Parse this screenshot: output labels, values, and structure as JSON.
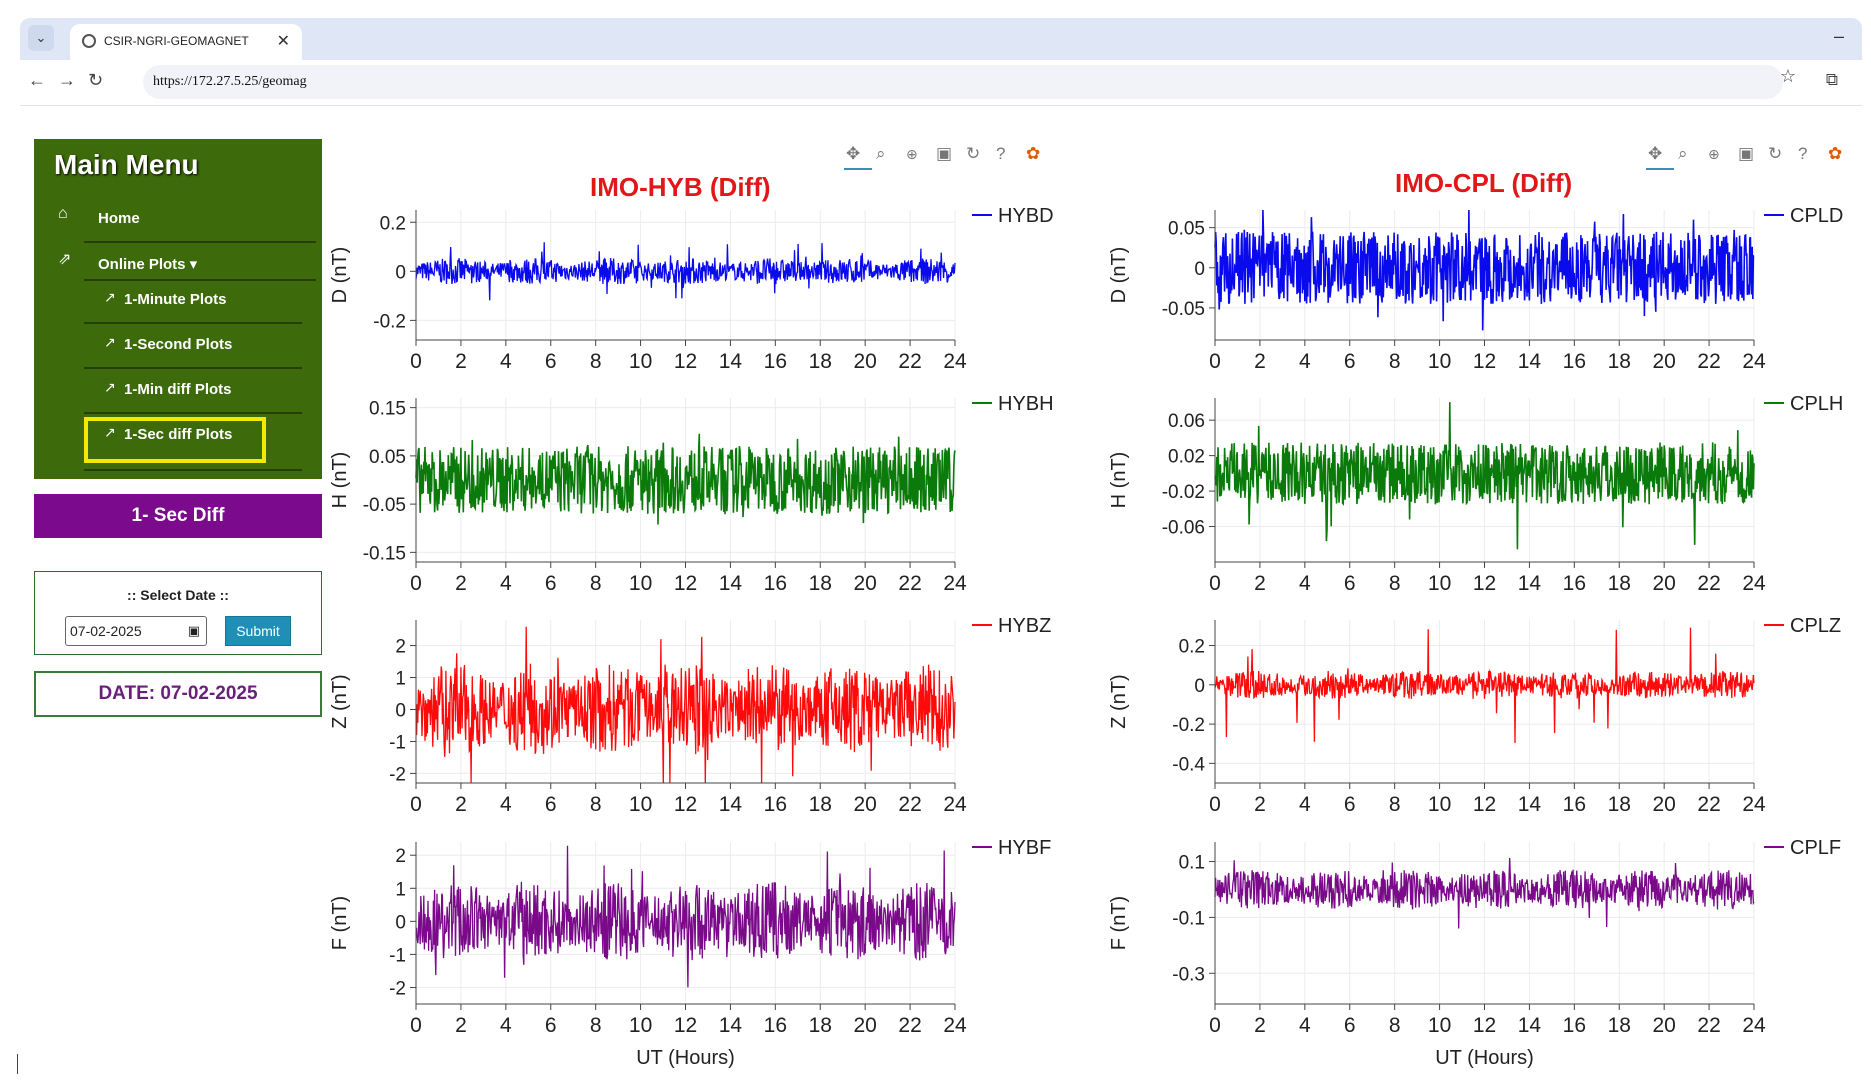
{
  "browser": {
    "tab_title": "CSIR-NGRI-GEOMAGNET",
    "url": "https://172.27.5.25/geomag"
  },
  "sidebar": {
    "title": "Main Menu",
    "home": "Home",
    "online_plots": "Online Plots ▾",
    "items": [
      "1-Minute Plots",
      "1-Second Plots",
      "1-Min diff Plots",
      "1-Sec diff Plots"
    ]
  },
  "mode_label": "1- Sec Diff",
  "date_form": {
    "label": ":: Select Date ::",
    "value": "07-02-2025",
    "submit": "Submit"
  },
  "date_banner": "DATE: 07-02-2025",
  "toolbar_icons": [
    "pan-icon",
    "box-zoom-icon",
    "zoom-icon",
    "save-icon",
    "reset-icon",
    "help-icon",
    "bokeh-logo-icon"
  ],
  "chart_data": [
    {
      "type": "line",
      "title": "IMO-HYB (Diff)",
      "xlabel": "UT (Hours)",
      "x_ticks": [
        0,
        2,
        4,
        6,
        8,
        10,
        12,
        14,
        16,
        18,
        20,
        22,
        24
      ],
      "xlim": [
        0,
        24
      ],
      "panels": [
        {
          "series": "HYBD",
          "ylabel": "D (nT)",
          "color": "#0a0aee",
          "ylim": [
            -0.28,
            0.25
          ],
          "yticks": [
            0.2,
            0,
            -0.2
          ],
          "ytick_labels": [
            "0.2",
            "0",
            "-0.2"
          ],
          "amplitude": 0.045,
          "spike": 0.12,
          "band": 0
        },
        {
          "series": "HYBH",
          "ylabel": "H (nT)",
          "color": "#0a7a0a",
          "ylim": [
            -0.17,
            0.17
          ],
          "yticks": [
            0.15,
            0.05,
            -0.05,
            -0.15
          ],
          "ytick_labels": [
            "0.15",
            "0.05",
            "-0.05",
            "-0.15"
          ],
          "amplitude": 0.07,
          "spike": 0.1,
          "band": 1
        },
        {
          "series": "HYBZ",
          "ylabel": "Z (nT)",
          "color": "#ff0a0a",
          "ylim": [
            -2.3,
            2.8
          ],
          "yticks": [
            2,
            1,
            0,
            -1,
            -2
          ],
          "ytick_labels": [
            "2",
            "1",
            "0",
            "-1",
            "-2"
          ],
          "amplitude": 1.2,
          "spike": 2.6,
          "band": 0
        },
        {
          "series": "HYBF",
          "ylabel": "F (nT)",
          "color": "#7a0a8a",
          "ylim": [
            -2.5,
            2.4
          ],
          "yticks": [
            2,
            1,
            0,
            -1,
            -2
          ],
          "ytick_labels": [
            "2",
            "1",
            "0",
            "-1",
            "-2"
          ],
          "amplitude": 1.0,
          "spike": 2.3,
          "band": 0
        }
      ]
    },
    {
      "type": "line",
      "title": "IMO-CPL (Diff)",
      "xlabel": "UT (Hours)",
      "x_ticks": [
        0,
        2,
        4,
        6,
        8,
        10,
        12,
        14,
        16,
        18,
        20,
        22,
        24
      ],
      "xlim": [
        0,
        24
      ],
      "panels": [
        {
          "series": "CPLD",
          "ylabel": "D (nT)",
          "color": "#0a0aee",
          "ylim": [
            -0.09,
            0.072
          ],
          "yticks": [
            0.05,
            0,
            -0.05
          ],
          "ytick_labels": [
            "0.05",
            "0",
            "-0.05"
          ],
          "amplitude": 0.045,
          "spike": 0.08,
          "band": 1
        },
        {
          "series": "CPLH",
          "ylabel": "H (nT)",
          "color": "#0a7a0a",
          "ylim": [
            -0.1,
            0.085
          ],
          "yticks": [
            0.06,
            0.02,
            -0.02,
            -0.06
          ],
          "ytick_labels": [
            "0.06",
            "0.02",
            "-0.02",
            "-0.06"
          ],
          "amplitude": 0.035,
          "spike": 0.09,
          "band": 1
        },
        {
          "series": "CPLZ",
          "ylabel": "Z (nT)",
          "color": "#ff0a0a",
          "ylim": [
            -0.5,
            0.33
          ],
          "yticks": [
            0.2,
            0,
            -0.2,
            -0.4
          ],
          "ytick_labels": [
            "0.2",
            "0",
            "-0.2",
            "-0.4"
          ],
          "amplitude": 0.06,
          "spike": 0.3,
          "band": 0
        },
        {
          "series": "CPLF",
          "ylabel": "F (nT)",
          "color": "#7a0a8a",
          "ylim": [
            -0.41,
            0.17
          ],
          "yticks": [
            0.1,
            -0.1,
            -0.3
          ],
          "ytick_labels": [
            "0.1",
            "-0.1",
            "-0.3"
          ],
          "amplitude": 0.06,
          "spike": 0.14,
          "band": 0
        }
      ]
    }
  ]
}
